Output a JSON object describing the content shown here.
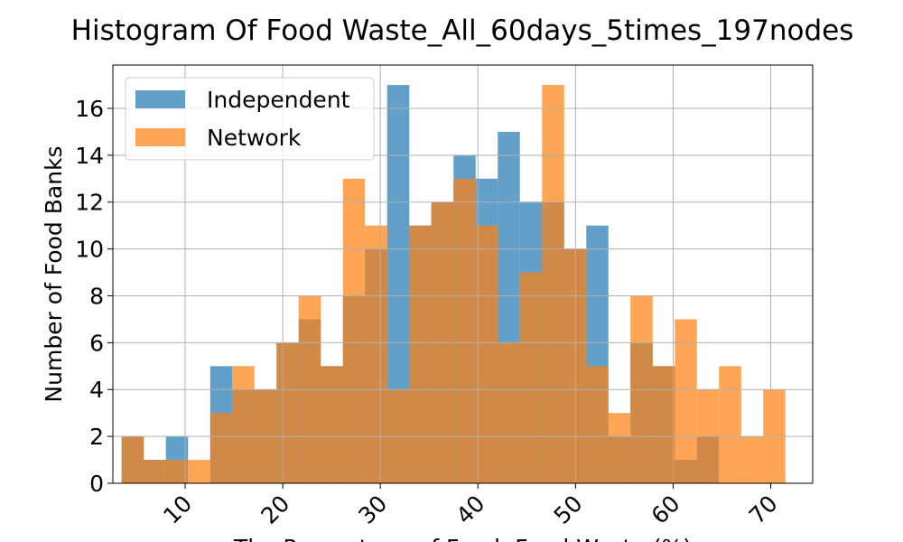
{
  "chart_data": {
    "type": "bar",
    "title": "Histogram Of Food Waste_All_60days_5times_197nodes",
    "xlabel": "The Percentage of Food: Food Waste (%)",
    "ylabel": "Number of Food Banks",
    "xlim": [
      2.6,
      74.3
    ],
    "ylim": [
      0,
      17.85
    ],
    "x_ticks": [
      10,
      20,
      30,
      40,
      50,
      60,
      70
    ],
    "y_ticks": [
      0,
      2,
      4,
      6,
      8,
      10,
      12,
      14,
      16
    ],
    "grid": true,
    "legend_position": "top-left",
    "bin_edges": [
      3.5,
      5.77,
      8.03,
      10.3,
      12.57,
      14.83,
      17.1,
      19.37,
      21.63,
      23.9,
      26.17,
      28.43,
      30.7,
      32.97,
      35.23,
      37.5,
      39.77,
      42.03,
      44.3,
      46.57,
      48.83,
      51.1,
      53.37,
      55.63,
      57.9,
      60.17,
      62.43,
      64.7,
      66.97,
      69.23,
      71.5
    ],
    "series": [
      {
        "name": "Independent",
        "color": "#1f77b4",
        "opacity": 0.7,
        "values": [
          2,
          1,
          2,
          0,
          5,
          4,
          4,
          6,
          7,
          5,
          8,
          10,
          17,
          11,
          12,
          14,
          13,
          15,
          12,
          12,
          10,
          11,
          2,
          6,
          5,
          1,
          2,
          0,
          0,
          0
        ]
      },
      {
        "name": "Network",
        "color": "#ff7f0e",
        "opacity": 0.7,
        "values": [
          2,
          1,
          1,
          1,
          3,
          5,
          4,
          6,
          8,
          5,
          13,
          11,
          4,
          11,
          12,
          13,
          11,
          6,
          9,
          17,
          10,
          5,
          3,
          8,
          5,
          7,
          4,
          5,
          2,
          4
        ]
      }
    ]
  }
}
